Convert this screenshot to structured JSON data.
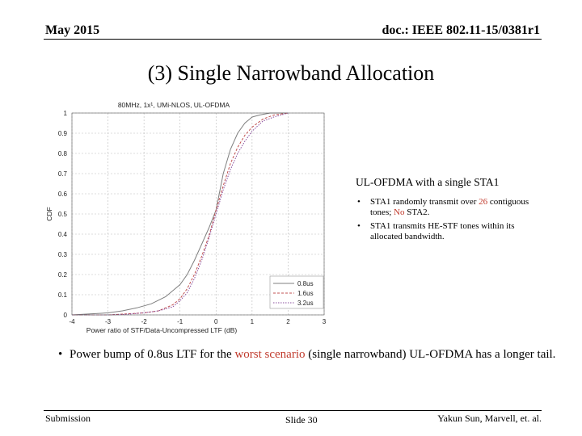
{
  "header": {
    "date": "May 2015",
    "doc_id": "doc.: IEEE 802.11-15/0381r1"
  },
  "slide_title": "(3) Single Narrowband Allocation",
  "callout": {
    "heading": "UL-OFDMA with a single STA1",
    "bullet1": {
      "pre": "STA1 randomly transmit over ",
      "highlight": "26",
      "mid": " contiguous tones; ",
      "highlight2": "No",
      "post": " STA2."
    },
    "bullet2": "STA1 transmits HE-STF tones within its allocated bandwidth."
  },
  "main_bullet": {
    "pre": "Power bump of 0.8us LTF for the ",
    "highlight": "worst scenario",
    "post": " (single narrowband) UL-OFDMA has a longer tail."
  },
  "footer": {
    "left": "Submission",
    "center": "Slide 30",
    "right": "Yakun Sun, Marvell, et. al."
  },
  "chart_data": {
    "type": "line",
    "title": "80MHz, 1x¹, UMi-NLOS, UL-OFDMA",
    "xlabel": "Power ratio of STF/Data-Uncompressed LTF (dB)",
    "ylabel": "CDF",
    "xlim": [
      -4,
      3
    ],
    "ylim": [
      0,
      1
    ],
    "xticks": [
      -4,
      -3,
      -2,
      -1,
      0,
      1,
      2,
      3
    ],
    "yticks": [
      0,
      0.1,
      0.2,
      0.3,
      0.4,
      0.5,
      0.6,
      0.7,
      0.8,
      0.9,
      1
    ],
    "grid": true,
    "legend_position": "bottom-right",
    "colors": {
      "s1": "#7f7f7f",
      "s2": "#c05050",
      "s3": "#8a4f9e"
    },
    "series": [
      {
        "name": "0.8us",
        "x": [
          -4,
          -3.5,
          -3,
          -2.6,
          -2.2,
          -1.8,
          -1.4,
          -1.0,
          -0.8,
          -0.6,
          -0.4,
          -0.2,
          0,
          0.2,
          0.4,
          0.6,
          0.8,
          1.0,
          1.2,
          1.5,
          2.0
        ],
        "y": [
          0.0,
          0.005,
          0.01,
          0.02,
          0.035,
          0.055,
          0.09,
          0.15,
          0.2,
          0.27,
          0.35,
          0.43,
          0.52,
          0.7,
          0.82,
          0.9,
          0.95,
          0.98,
          0.99,
          1.0,
          1.0
        ]
      },
      {
        "name": "1.6us",
        "x": [
          -4,
          -3,
          -2.5,
          -2.0,
          -1.6,
          -1.2,
          -1.0,
          -0.8,
          -0.6,
          -0.4,
          -0.2,
          0,
          0.2,
          0.4,
          0.6,
          0.8,
          1.0,
          1.3,
          1.6,
          2.0
        ],
        "y": [
          0.0,
          0.0,
          0.005,
          0.01,
          0.02,
          0.05,
          0.08,
          0.13,
          0.2,
          0.29,
          0.39,
          0.52,
          0.64,
          0.75,
          0.83,
          0.89,
          0.93,
          0.97,
          0.99,
          1.0
        ]
      },
      {
        "name": "3.2us",
        "x": [
          -4,
          -3,
          -2.5,
          -2.0,
          -1.6,
          -1.2,
          -1.0,
          -0.8,
          -0.6,
          -0.4,
          -0.2,
          0,
          0.2,
          0.4,
          0.6,
          0.8,
          1.0,
          1.3,
          1.6,
          2.0
        ],
        "y": [
          0.0,
          0.0,
          0.003,
          0.01,
          0.02,
          0.04,
          0.07,
          0.11,
          0.18,
          0.27,
          0.38,
          0.5,
          0.62,
          0.72,
          0.8,
          0.86,
          0.91,
          0.96,
          0.98,
          1.0
        ]
      }
    ]
  }
}
